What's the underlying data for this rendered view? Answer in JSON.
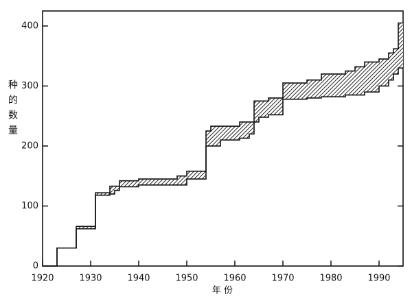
{
  "chart_data": {
    "type": "step-band",
    "x_label": "年 份",
    "y_label": "种的数量",
    "x": [
      1920,
      1923,
      1927,
      1931,
      1934,
      1935,
      1936,
      1940,
      1948,
      1950,
      1954,
      1955,
      1957,
      1961,
      1963,
      1964,
      1965,
      1967,
      1970,
      1975,
      1978,
      1983,
      1985,
      1987,
      1990,
      1992,
      1993,
      1994,
      1995
    ],
    "series": [
      {
        "name": "upper",
        "color": "#111111",
        "values": [
          0,
          30,
          66,
          122,
          133,
          133,
          142,
          145,
          150,
          158,
          225,
          233,
          233,
          240,
          240,
          275,
          275,
          280,
          305,
          310,
          320,
          325,
          332,
          340,
          345,
          355,
          362,
          405,
          405
        ]
      },
      {
        "name": "lower",
        "color": "#111111",
        "values": [
          0,
          30,
          62,
          118,
          120,
          126,
          132,
          135,
          135,
          145,
          200,
          200,
          210,
          213,
          220,
          240,
          248,
          252,
          278,
          280,
          282,
          285,
          285,
          290,
          300,
          310,
          320,
          330,
          330
        ]
      }
    ],
    "xlim": [
      1920,
      1995
    ],
    "ylim": [
      0,
      425
    ],
    "xticks": [
      1920,
      1930,
      1940,
      1950,
      1960,
      1970,
      1980,
      1990
    ],
    "yticks": [
      0,
      100,
      200,
      300,
      400
    ]
  }
}
